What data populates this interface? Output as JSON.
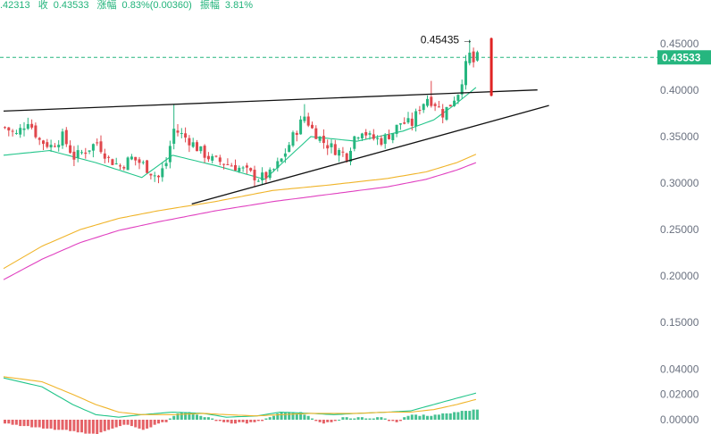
{
  "header": {
    "price_fragment": ".42313",
    "close_label": "收",
    "close_value": "0.43533",
    "change_label": "涨幅",
    "change_value": "0.83%(0.00360)",
    "amplitude_label": "振幅",
    "amplitude_value": "3.81%"
  },
  "colors": {
    "up": "#26b67f",
    "down": "#e0474c",
    "ma_fast": "#22c58a",
    "ma_mid": "#f0b429",
    "ma_slow": "#e040c0",
    "current_price_line": "#26b67f",
    "trendline": "#111111",
    "arrow": "#e02424",
    "macd_dif": "#22c58a",
    "macd_dea": "#f0b429"
  },
  "chart_data": [
    {
      "type": "candlestick",
      "y_ticks": [
        "0.45000",
        "0.40000",
        "0.35000",
        "0.30000",
        "0.25000",
        "0.20000",
        "0.15000"
      ],
      "ylim": [
        0.1,
        0.46
      ],
      "current_price": "0.43533",
      "annotation_high": "0.45435",
      "annotation_arrow": "→",
      "grid": false,
      "close_path": [
        [
          0,
          0.36
        ],
        [
          3,
          0.352
        ],
        [
          6,
          0.368
        ],
        [
          9,
          0.346
        ],
        [
          12,
          0.34
        ],
        [
          15,
          0.35
        ],
        [
          18,
          0.328
        ],
        [
          21,
          0.335
        ],
        [
          24,
          0.344
        ],
        [
          27,
          0.326
        ],
        [
          30,
          0.318
        ],
        [
          33,
          0.327
        ],
        [
          36,
          0.32
        ],
        [
          38,
          0.312
        ],
        [
          40,
          0.306
        ],
        [
          42,
          0.322
        ],
        [
          44,
          0.358
        ],
        [
          46,
          0.352
        ],
        [
          48,
          0.346
        ],
        [
          51,
          0.334
        ],
        [
          54,
          0.325
        ],
        [
          57,
          0.322
        ],
        [
          60,
          0.318
        ],
        [
          63,
          0.312
        ],
        [
          66,
          0.305
        ],
        [
          69,
          0.309
        ],
        [
          72,
          0.325
        ],
        [
          75,
          0.35
        ],
        [
          78,
          0.372
        ],
        [
          80,
          0.358
        ],
        [
          83,
          0.344
        ],
        [
          86,
          0.336
        ],
        [
          89,
          0.33
        ],
        [
          91,
          0.35
        ],
        [
          93,
          0.358
        ],
        [
          95,
          0.349
        ],
        [
          98,
          0.346
        ],
        [
          101,
          0.355
        ],
        [
          103,
          0.365
        ],
        [
          106,
          0.364
        ],
        [
          108,
          0.382
        ],
        [
          110,
          0.392
        ],
        [
          112,
          0.386
        ],
        [
          114,
          0.375
        ],
        [
          116,
          0.385
        ],
        [
          117,
          0.392
        ],
        [
          118,
          0.398
        ],
        [
          120,
          0.426
        ],
        [
          121,
          0.438
        ],
        [
          122,
          0.43
        ],
        [
          123,
          0.43533
        ]
      ],
      "volatility": 0.012,
      "bar_count": 124,
      "spikes": [
        {
          "index": 44,
          "high": 0.385
        },
        {
          "index": 78,
          "high": 0.385
        },
        {
          "index": 111,
          "high": 0.41
        },
        {
          "index": 121,
          "high": 0.45435
        }
      ],
      "moving_averages": [
        {
          "key": "ma_fast",
          "path": [
            [
              0,
              0.33
            ],
            [
              12,
              0.335
            ],
            [
              24,
              0.322
            ],
            [
              36,
              0.306
            ],
            [
              44,
              0.33
            ],
            [
              56,
              0.318
            ],
            [
              68,
              0.304
            ],
            [
              80,
              0.35
            ],
            [
              92,
              0.345
            ],
            [
              104,
              0.356
            ],
            [
              112,
              0.368
            ],
            [
              118,
              0.386
            ],
            [
              123,
              0.403
            ]
          ]
        },
        {
          "key": "ma_mid",
          "path": [
            [
              0,
              0.208
            ],
            [
              10,
              0.232
            ],
            [
              20,
              0.25
            ],
            [
              30,
              0.262
            ],
            [
              40,
              0.27
            ],
            [
              55,
              0.28
            ],
            [
              70,
              0.292
            ],
            [
              85,
              0.298
            ],
            [
              100,
              0.305
            ],
            [
              110,
              0.312
            ],
            [
              118,
              0.322
            ],
            [
              123,
              0.331
            ]
          ]
        },
        {
          "key": "ma_slow",
          "path": [
            [
              0,
              0.196
            ],
            [
              10,
              0.218
            ],
            [
              20,
              0.236
            ],
            [
              30,
              0.249
            ],
            [
              40,
              0.258
            ],
            [
              55,
              0.27
            ],
            [
              70,
              0.28
            ],
            [
              85,
              0.288
            ],
            [
              100,
              0.296
            ],
            [
              110,
              0.304
            ],
            [
              118,
              0.314
            ],
            [
              123,
              0.322
            ]
          ]
        }
      ],
      "trendlines": [
        {
          "name": "resistance",
          "from": [
            0,
            0.3775
          ],
          "to": [
            139,
            0.4003
          ]
        },
        {
          "name": "support",
          "from": [
            49,
            0.2775
          ],
          "to": [
            142,
            0.3835
          ]
        }
      ],
      "drop_arrow": {
        "index": 127,
        "from": 0.455,
        "to": 0.395
      }
    },
    {
      "type": "macd",
      "y_ticks": [
        "0.04000",
        "0.02000",
        "0.00000"
      ],
      "ylim": [
        -0.012,
        0.044
      ],
      "histogram": [
        -0.003,
        -0.003,
        -0.004,
        -0.004,
        -0.005,
        -0.005,
        -0.005,
        -0.006,
        -0.006,
        -0.006,
        -0.007,
        -0.007,
        -0.007,
        -0.008,
        -0.008,
        -0.008,
        -0.008,
        -0.009,
        -0.009,
        -0.01,
        -0.01,
        -0.011,
        -0.011,
        -0.011,
        -0.012,
        -0.01,
        -0.009,
        -0.008,
        -0.007,
        -0.006,
        -0.005,
        -0.004,
        -0.004,
        -0.005,
        -0.006,
        -0.007,
        -0.008,
        -0.007,
        -0.006,
        -0.004,
        -0.003,
        -0.002,
        -0.002,
        0.001,
        0.003,
        0.005,
        0.006,
        0.006,
        0.006,
        0.005,
        0.004,
        0.003,
        0.002,
        0.002,
        0.001,
        -0.001,
        -0.001,
        -0.002,
        -0.002,
        -0.003,
        -0.003,
        -0.002,
        -0.002,
        -0.003,
        -0.002,
        -0.002,
        -0.001,
        -0.001,
        0.001,
        0.002,
        0.003,
        0.005,
        0.006,
        0.006,
        0.006,
        0.006,
        0.005,
        0.006,
        0.004,
        0.003,
        0.001,
        -0.001,
        -0.002,
        -0.003,
        -0.002,
        -0.002,
        -0.001,
        0.0,
        0.002,
        0.002,
        0.001,
        0.001,
        0.002,
        0.002,
        0.001,
        0.001,
        0.001,
        0.002,
        0.002,
        0.001,
        -0.001,
        -0.001,
        -0.002,
        -0.001,
        0.002,
        0.003,
        0.004,
        0.004,
        0.003,
        0.004,
        0.003,
        0.003,
        0.004,
        0.004,
        0.005,
        0.005,
        0.005,
        0.006,
        0.006,
        0.007,
        0.007,
        0.007,
        0.008,
        0.008
      ],
      "dif_path": [
        [
          0,
          0.033
        ],
        [
          10,
          0.026
        ],
        [
          18,
          0.012
        ],
        [
          24,
          0.004
        ],
        [
          30,
          0.002
        ],
        [
          36,
          0.004
        ],
        [
          44,
          0.006
        ],
        [
          52,
          0.005
        ],
        [
          58,
          0.002
        ],
        [
          66,
          0.003
        ],
        [
          72,
          0.006
        ],
        [
          80,
          0.005
        ],
        [
          86,
          0.004
        ],
        [
          92,
          0.005
        ],
        [
          100,
          0.006
        ],
        [
          106,
          0.007
        ],
        [
          112,
          0.012
        ],
        [
          118,
          0.017
        ],
        [
          123,
          0.021
        ]
      ],
      "dea_path": [
        [
          0,
          0.034
        ],
        [
          10,
          0.03
        ],
        [
          18,
          0.02
        ],
        [
          24,
          0.012
        ],
        [
          30,
          0.006
        ],
        [
          36,
          0.004
        ],
        [
          44,
          0.004
        ],
        [
          52,
          0.005
        ],
        [
          58,
          0.004
        ],
        [
          66,
          0.003
        ],
        [
          72,
          0.004
        ],
        [
          80,
          0.005
        ],
        [
          86,
          0.005
        ],
        [
          92,
          0.005
        ],
        [
          100,
          0.006
        ],
        [
          106,
          0.006
        ],
        [
          112,
          0.008
        ],
        [
          118,
          0.012
        ],
        [
          123,
          0.016
        ]
      ]
    }
  ]
}
